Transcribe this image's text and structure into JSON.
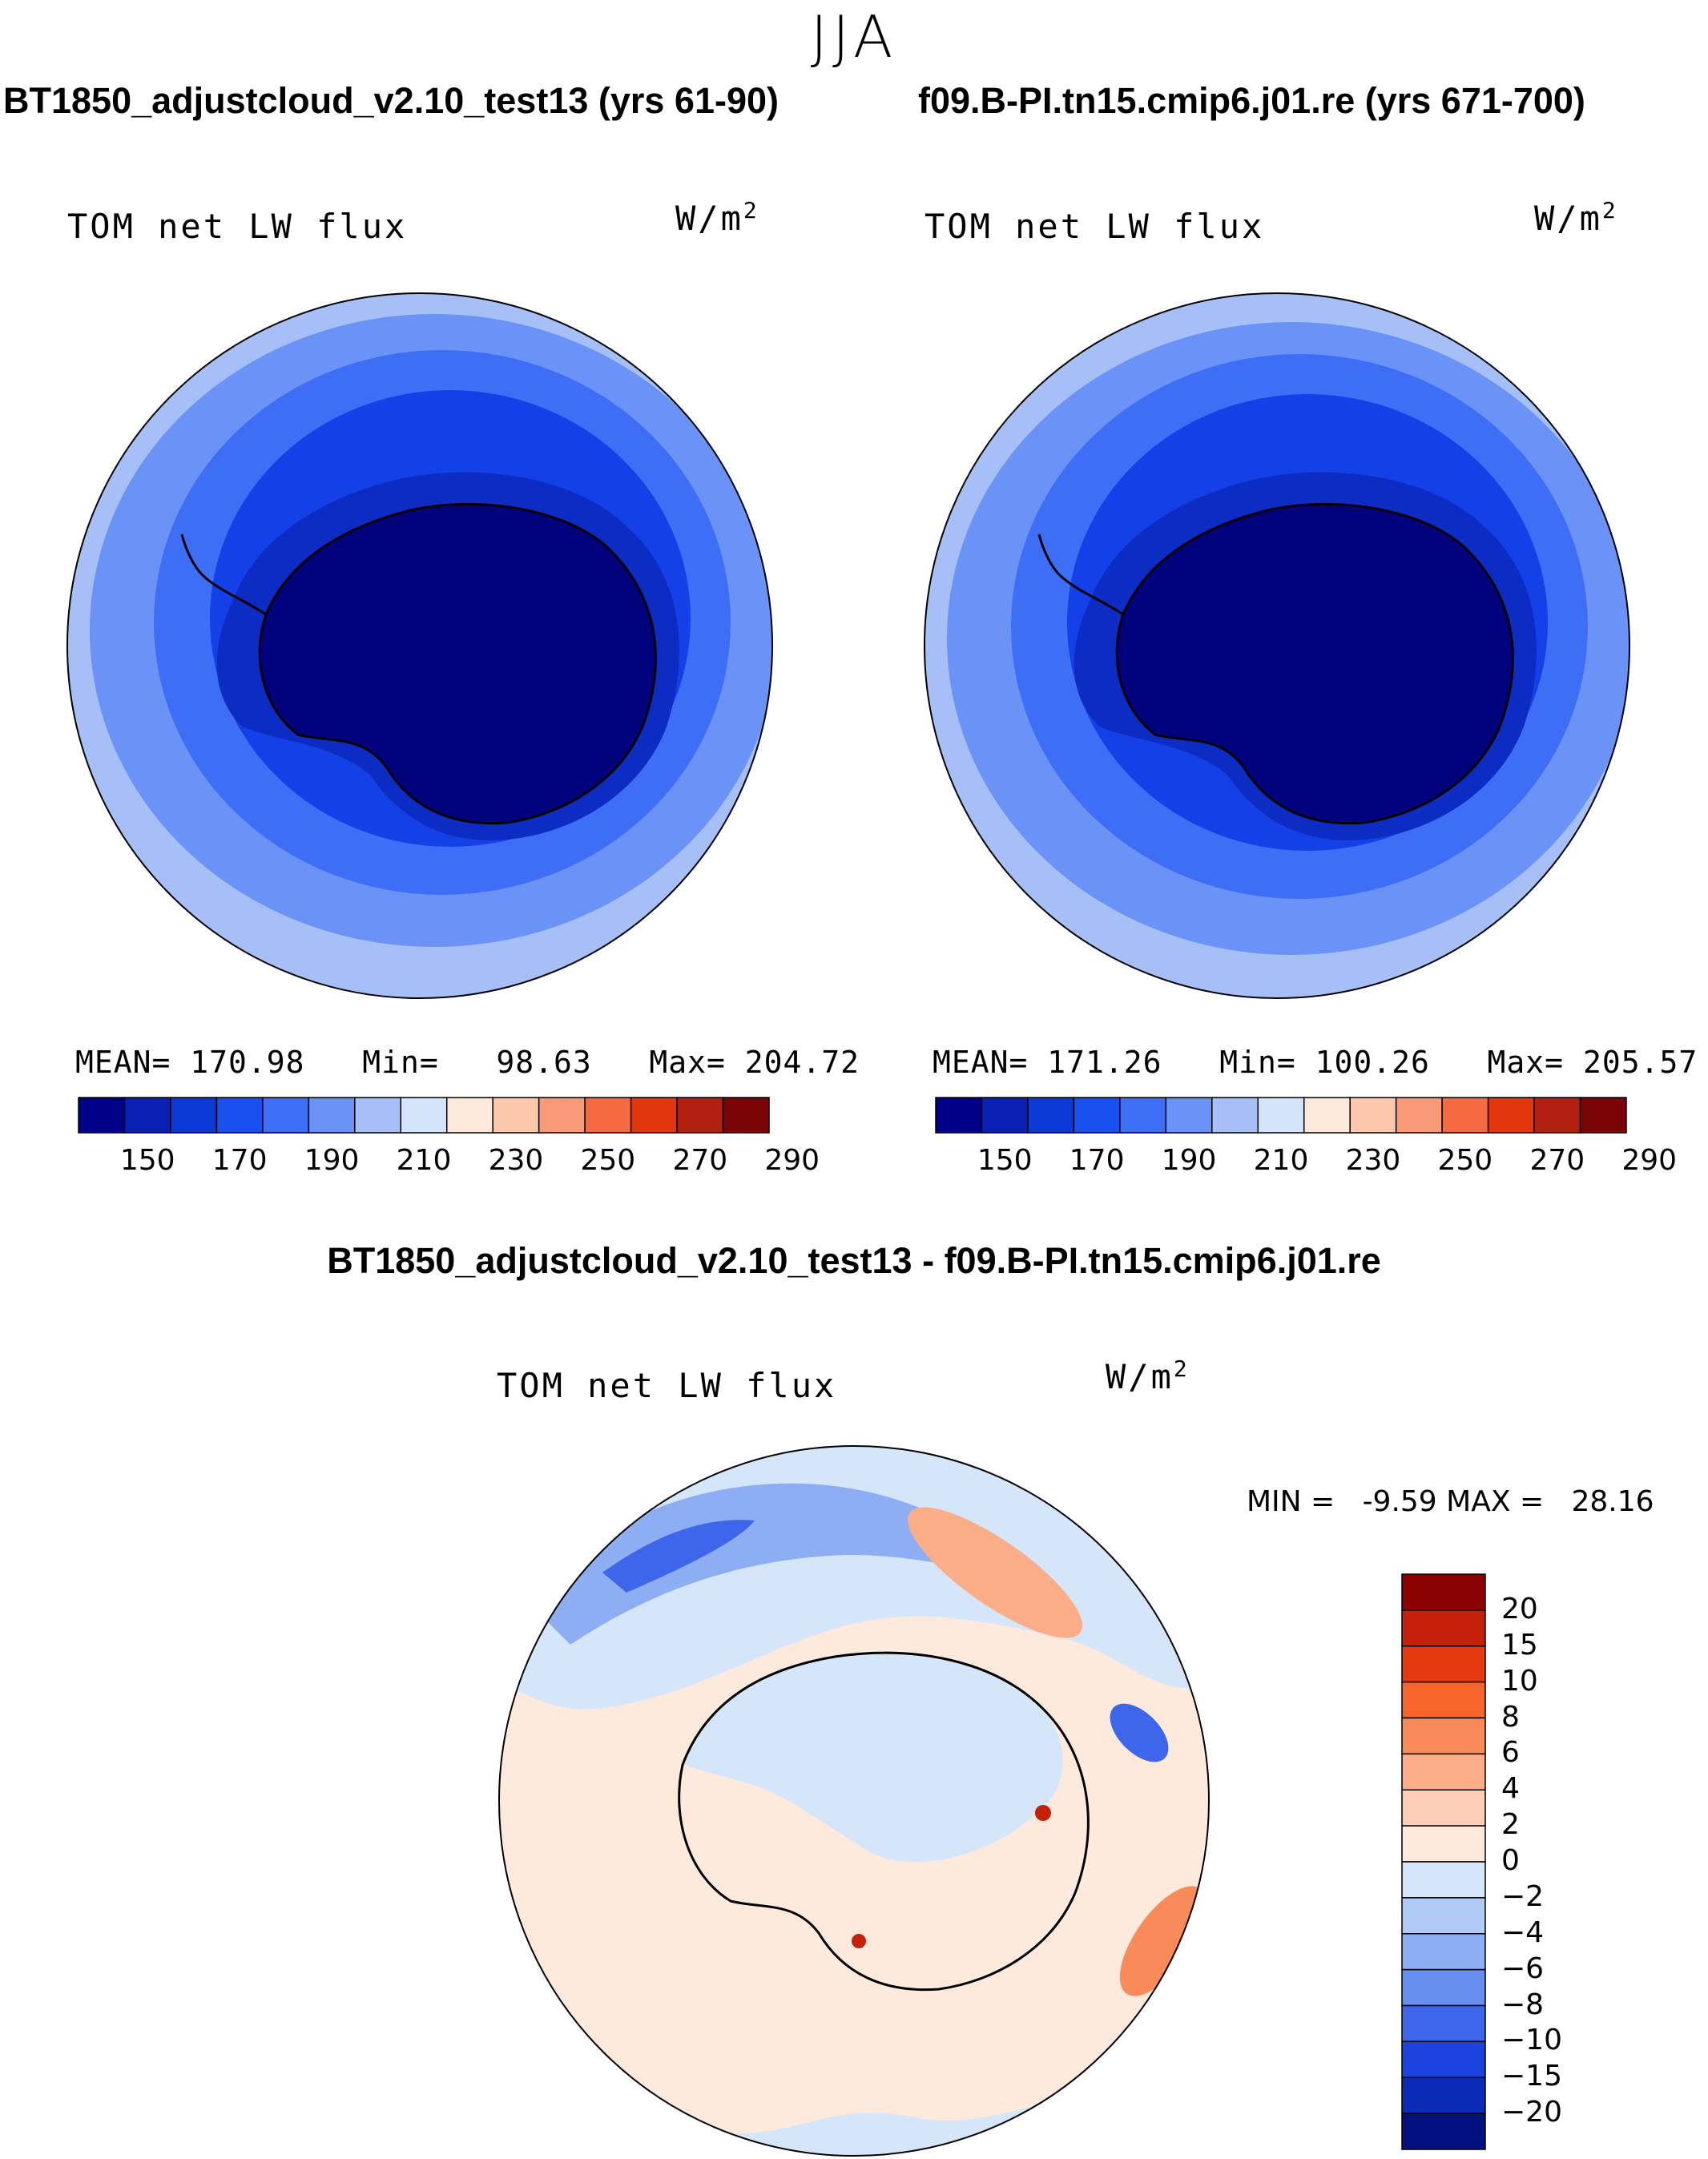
{
  "season": "JJA",
  "variable_label": "TOM net LW flux",
  "unit_base": "W/m",
  "unit_exp": "2",
  "panels": [
    {
      "title": "BT1850_adjustcloud_v2.10_test13 (yrs 61-90)",
      "mean_label": "MEAN=",
      "mean": "170.98",
      "min_label": "Min=",
      "min": "98.63",
      "max_label": "Max=",
      "max": "204.72"
    },
    {
      "title": "f09.B-PI.tn15.cmip6.j01.re (yrs 671-700)",
      "mean_label": "MEAN=",
      "mean": "171.26",
      "min_label": "Min=",
      "min": "100.26",
      "max_label": "Max=",
      "max": "205.57"
    }
  ],
  "abs_colorbar": {
    "tick_labels": [
      "150",
      "170",
      "190",
      "210",
      "230",
      "250",
      "270",
      "290"
    ],
    "colors": [
      "#00008b",
      "#0a20b4",
      "#0d3ad6",
      "#1a4ff2",
      "#3d6ef5",
      "#6b93f7",
      "#a6bff6",
      "#d4e4f9",
      "#fde9dc",
      "#fbc7ad",
      "#f99b78",
      "#f56a41",
      "#e2370d",
      "#b3200f",
      "#7a0406"
    ]
  },
  "diff": {
    "title": "BT1850_adjustcloud_v2.10_test13 - f09.B-PI.tn15.cmip6.j01.re",
    "min_label": "MIN =",
    "min": "-9.59",
    "max_label": "MAX =",
    "max": "28.16",
    "tick_labels": [
      "20",
      "15",
      "10",
      "8",
      "6",
      "4",
      "2",
      "0",
      "−2",
      "−4",
      "−6",
      "−8",
      "−10",
      "−15",
      "−20"
    ],
    "colors": [
      "#8b0000",
      "#c4200a",
      "#e53a0f",
      "#f7652c",
      "#f98b5a",
      "#fbad87",
      "#fdcfb6",
      "#fdeadc",
      "#d5e6fa",
      "#b0cbf5",
      "#8daef3",
      "#668ff0",
      "#3e66ea",
      "#1a44dd",
      "#0b2bb6",
      "#02107f"
    ]
  },
  "colors": {
    "outline": "#000000",
    "antarctica_abs": "#01037c",
    "ocean_ring1": "#1440e8",
    "ocean_ring2": "#3d6ef5",
    "ocean_ring3": "#6b93f7",
    "ocean_outer": "#a6bff6"
  }
}
